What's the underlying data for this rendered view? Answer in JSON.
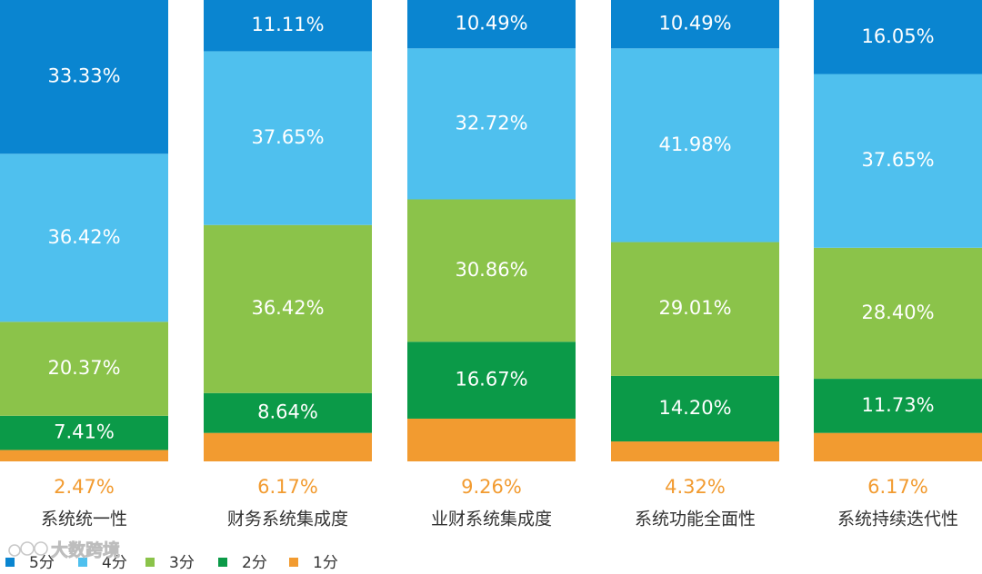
{
  "chart_data": {
    "type": "bar",
    "stacked": true,
    "normalized": true,
    "categories": [
      "系统统一性",
      "财务系统集成度",
      "业财系统集成度",
      "系统功能全面性",
      "系统持续迭代性"
    ],
    "series": [
      {
        "name": "1分",
        "color": "#f29b30",
        "values": [
          2.47,
          6.17,
          9.26,
          4.32,
          6.17
        ],
        "labels": [
          "2.47%",
          "6.17%",
          "9.26%",
          "4.32%",
          "6.17%"
        ]
      },
      {
        "name": "2分",
        "color": "#0b9a48",
        "values": [
          7.41,
          8.64,
          16.67,
          14.2,
          11.73
        ],
        "labels": [
          "7.41%",
          "8.64%",
          "16.67%",
          "14.20%",
          "11.73%"
        ]
      },
      {
        "name": "3分",
        "color": "#8bc34a",
        "values": [
          20.37,
          36.42,
          30.86,
          29.01,
          28.4
        ],
        "labels": [
          "20.37%",
          "36.42%",
          "30.86%",
          "29.01%",
          "28.40%"
        ]
      },
      {
        "name": "4分",
        "color": "#4fc0ee",
        "values": [
          36.42,
          37.65,
          32.72,
          41.98,
          37.65
        ],
        "labels": [
          "36.42%",
          "37.65%",
          "32.72%",
          "41.98%",
          "37.65%"
        ]
      },
      {
        "name": "5分",
        "color": "#0a85d0",
        "values": [
          33.33,
          11.11,
          10.49,
          10.49,
          16.05
        ],
        "labels": [
          "33.33%",
          "11.11%",
          "10.49%",
          "10.49%",
          "16.05%"
        ]
      }
    ],
    "legend_order": [
      "5分",
      "4分",
      "3分",
      "2分",
      "1分"
    ],
    "legend_placement": "bottom-left",
    "grid": false,
    "ylim": [
      0,
      100
    ]
  },
  "watermark": {
    "text": "大数跨境",
    "icon": "watermark-logo-icon"
  }
}
